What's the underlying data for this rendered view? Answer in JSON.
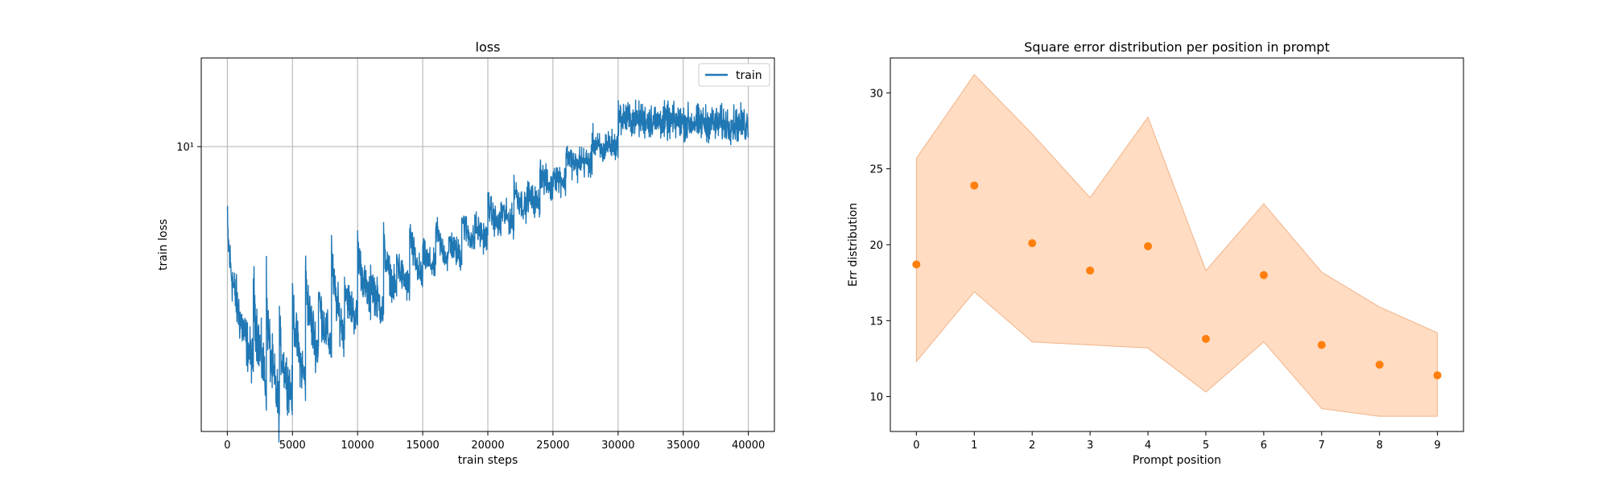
{
  "chart_data": [
    {
      "type": "line",
      "title": "loss",
      "xlabel": "train steps",
      "ylabel": "train loss",
      "xlim": [
        -2000,
        42000
      ],
      "ylim": [
        2.9,
        14.7
      ],
      "yscale": "log",
      "x_ticks": [
        0,
        5000,
        10000,
        15000,
        20000,
        25000,
        30000,
        35000,
        40000
      ],
      "y_ticks": [
        {
          "value": 10,
          "label": "10¹"
        }
      ],
      "grid": true,
      "legend_position": "top-right",
      "colors": {
        "train": "#1f77b4"
      },
      "series": [
        {
          "name": "train",
          "segments": [
            {
              "start": 0,
              "end": 2000,
              "from": 7.5,
              "to": 3.9,
              "band": 0.1
            },
            {
              "start": 2000,
              "end": 3000,
              "from": 5.8,
              "to": 3.6,
              "band": 0.12
            },
            {
              "start": 3000,
              "end": 4000,
              "from": 5.5,
              "to": 3.2,
              "band": 0.12
            },
            {
              "start": 4000,
              "end": 5000,
              "from": 4.6,
              "to": 3.4,
              "band": 0.1
            },
            {
              "start": 5000,
              "end": 6000,
              "from": 5.5,
              "to": 3.6,
              "band": 0.1
            },
            {
              "start": 6000,
              "end": 7000,
              "from": 6.0,
              "to": 4.1,
              "band": 0.1
            },
            {
              "start": 7000,
              "end": 8000,
              "from": 5.5,
              "to": 4.2,
              "band": 0.09
            },
            {
              "start": 8000,
              "end": 9000,
              "from": 6.5,
              "to": 4.4,
              "band": 0.09
            },
            {
              "start": 9000,
              "end": 10000,
              "from": 5.7,
              "to": 4.7,
              "band": 0.08
            },
            {
              "start": 10000,
              "end": 11000,
              "from": 6.8,
              "to": 5.1,
              "band": 0.08
            },
            {
              "start": 11000,
              "end": 12000,
              "from": 5.9,
              "to": 4.9,
              "band": 0.08
            },
            {
              "start": 12000,
              "end": 13000,
              "from": 6.8,
              "to": 5.3,
              "band": 0.07
            },
            {
              "start": 13000,
              "end": 14000,
              "from": 6.3,
              "to": 5.4,
              "band": 0.07
            },
            {
              "start": 14000,
              "end": 15000,
              "from": 7.2,
              "to": 5.6,
              "band": 0.07
            },
            {
              "start": 15000,
              "end": 16000,
              "from": 6.4,
              "to": 5.9,
              "band": 0.06
            },
            {
              "start": 16000,
              "end": 17000,
              "from": 7.3,
              "to": 6.1,
              "band": 0.06
            },
            {
              "start": 17000,
              "end": 18000,
              "from": 6.8,
              "to": 6.2,
              "band": 0.06
            },
            {
              "start": 18000,
              "end": 19000,
              "from": 7.5,
              "to": 6.6,
              "band": 0.06
            },
            {
              "start": 19000,
              "end": 20000,
              "from": 7.2,
              "to": 6.7,
              "band": 0.06
            },
            {
              "start": 20000,
              "end": 21000,
              "from": 8.1,
              "to": 7.0,
              "band": 0.06
            },
            {
              "start": 21000,
              "end": 22000,
              "from": 7.7,
              "to": 7.2,
              "band": 0.06
            },
            {
              "start": 22000,
              "end": 23000,
              "from": 8.6,
              "to": 7.6,
              "band": 0.06
            },
            {
              "start": 23000,
              "end": 24000,
              "from": 8.2,
              "to": 7.8,
              "band": 0.06
            },
            {
              "start": 24000,
              "end": 25000,
              "from": 9.2,
              "to": 8.3,
              "band": 0.06
            },
            {
              "start": 25000,
              "end": 26000,
              "from": 9.0,
              "to": 8.6,
              "band": 0.06
            },
            {
              "start": 26000,
              "end": 27000,
              "from": 10.0,
              "to": 9.1,
              "band": 0.06
            },
            {
              "start": 27000,
              "end": 28000,
              "from": 9.5,
              "to": 9.3,
              "band": 0.06
            },
            {
              "start": 28000,
              "end": 29000,
              "from": 10.5,
              "to": 9.7,
              "band": 0.06
            },
            {
              "start": 29000,
              "end": 30000,
              "from": 10.2,
              "to": 10.0,
              "band": 0.06
            },
            {
              "start": 30000,
              "end": 40000,
              "from": 11.4,
              "to": 11.0,
              "band": 0.07
            }
          ]
        }
      ]
    },
    {
      "type": "scatter",
      "title": "Square error distribution per position in prompt",
      "xlabel": "Prompt position",
      "ylabel": "Err distribution",
      "xlim": [
        -0.45,
        9.45
      ],
      "ylim": [
        7.7,
        32.3
      ],
      "x_ticks": [
        0,
        1,
        2,
        3,
        4,
        5,
        6,
        7,
        8,
        9
      ],
      "y_ticks": [
        10,
        15,
        20,
        25,
        30
      ],
      "grid": false,
      "colors": {
        "points": "#ff7f0e",
        "band_fill": "#ffdcc2",
        "band_edge": "#f1b48a"
      },
      "x": [
        0,
        1,
        2,
        3,
        4,
        5,
        6,
        7,
        8,
        9
      ],
      "values": [
        18.7,
        23.9,
        20.1,
        18.3,
        19.9,
        13.8,
        18.0,
        13.4,
        12.1,
        11.4
      ],
      "band_upper": [
        25.7,
        31.2,
        27.3,
        23.1,
        28.4,
        18.3,
        22.7,
        18.2,
        15.9,
        14.2
      ],
      "band_lower": [
        12.3,
        16.9,
        13.6,
        13.4,
        13.2,
        10.3,
        13.6,
        9.2,
        8.7,
        8.7
      ]
    }
  ]
}
